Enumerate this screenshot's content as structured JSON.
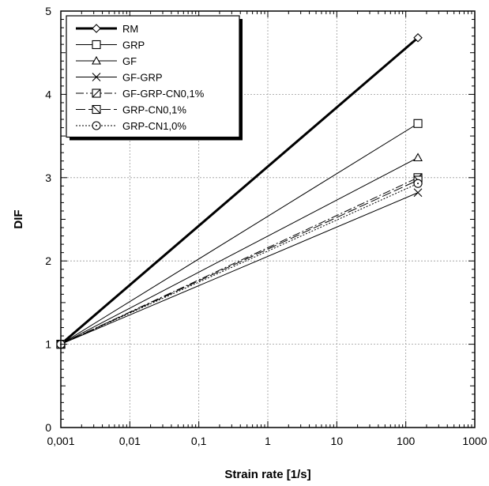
{
  "chart_data": {
    "type": "line",
    "title": "",
    "xlabel": "Strain rate [1/s]",
    "ylabel": "DIF",
    "xscale": "log",
    "xlim": [
      0.001,
      1000
    ],
    "ylim": [
      0,
      5
    ],
    "x_tick_labels": [
      "0,001",
      "0,01",
      "0,1",
      "1",
      "10",
      "100",
      "1000"
    ],
    "y_tick_labels": [
      "0",
      "1",
      "2",
      "3",
      "4",
      "5"
    ],
    "grid": true,
    "legend_position": "top-left",
    "x": [
      0.001,
      150
    ],
    "series": [
      {
        "name": "RM",
        "values": [
          1.0,
          4.68
        ],
        "marker": "diamond",
        "line": "solid",
        "width": 3
      },
      {
        "name": "GRP",
        "values": [
          1.0,
          3.65
        ],
        "marker": "square",
        "line": "solid",
        "width": 1
      },
      {
        "name": "GF",
        "values": [
          1.0,
          3.24
        ],
        "marker": "triangle",
        "line": "solid",
        "width": 1
      },
      {
        "name": "GF-GRP",
        "values": [
          1.0,
          2.82
        ],
        "marker": "x",
        "line": "solid",
        "width": 1
      },
      {
        "name": "GF-GRP-CN0,1%",
        "values": [
          1.0,
          3.0
        ],
        "marker": "square-slash",
        "line": "dashdot",
        "width": 1
      },
      {
        "name": "GRP-CN0,1%",
        "values": [
          1.0,
          2.97
        ],
        "marker": "square-backslash",
        "line": "longdash",
        "width": 1
      },
      {
        "name": "GRP-CN1,0%",
        "values": [
          1.0,
          2.93
        ],
        "marker": "circle-dot",
        "line": "dotted",
        "width": 1
      }
    ]
  }
}
